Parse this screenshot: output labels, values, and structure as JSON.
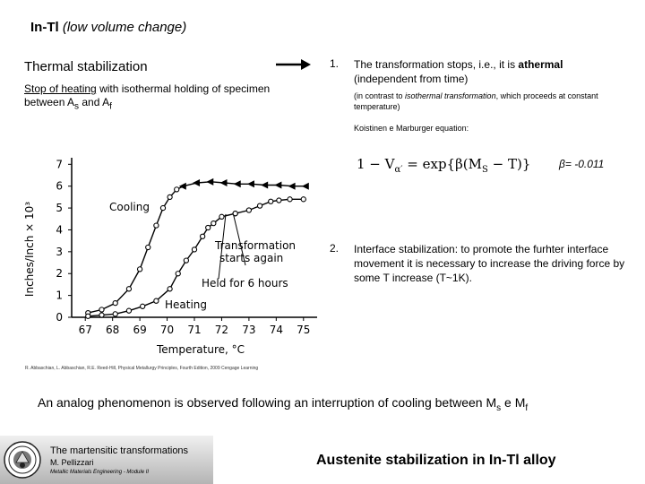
{
  "header": {
    "title_main": "In-Tl",
    "title_sub": "(low volume change)"
  },
  "left": {
    "thermal_stabilization": "Thermal stabilization",
    "stop_prefix": "Stop of heating",
    "stop_mid": " with isothermal holding of specimen between A",
    "sub_s": "s",
    "and": " and A",
    "sub_f": "f"
  },
  "right": {
    "item1_num": "1.",
    "item1_text_a": "The transformation stops, i.e., it is ",
    "item1_bold": "athermal",
    "item1_text_b": " (independent from time)",
    "item1_note_a": "(in contrast to ",
    "item1_note_italic": "isothermal transformation",
    "item1_note_b": ", which proceeds at constant temperature)",
    "koistinen": "Koistinen e Marburger equation:",
    "equation": "1 − V",
    "equation_sub": "α′",
    "equation_rhs": " = exp{β(M",
    "equation_rhs_sub": "S",
    "equation_rhs_end": " − T)}",
    "beta": "β= -0.011",
    "item2_num": "2.",
    "item2_text": "Interface stabilization: to promote the furhter interface movement it is necessary to increase the driving force by some T increase (T~1K)."
  },
  "reference": "R. Abbaschian, L. Abbaschian, R.E. Reed-Hill, Physical Metallurgy Principles, Fourth Edition, 2009 Cengage Learning",
  "analog": {
    "text_a": "An analog phenomenon is observed following an interruption of cooling between  M",
    "sub_s": "s",
    "text_b": " e M",
    "sub_f": "f"
  },
  "footer": {
    "title": "The martensitic transformations",
    "author": "M. Pellizzari",
    "course": "Metallic Materials Engineering - Module II",
    "main": "Austenite stabilization in In-Tl alloy"
  },
  "chart_data": {
    "type": "line",
    "xlabel": "Temperature, °C",
    "ylabel": "Inches/Inch × 10³",
    "xlim": [
      66.5,
      75.5
    ],
    "ylim": [
      0,
      7.3
    ],
    "x_ticks": [
      "67",
      "68",
      "69",
      "70",
      "71",
      "72",
      "73",
      "74",
      "75"
    ],
    "y_ticks": [
      "0",
      "1",
      "2",
      "3",
      "4",
      "5",
      "6",
      "7"
    ],
    "annotations": {
      "cooling": "Cooling",
      "transformation": "Transformation",
      "starts_again": "starts again",
      "held": "Held for 6 hours",
      "heating": "Heating"
    },
    "series": [
      {
        "name": "Cooling",
        "x": [
          75.1,
          74.6,
          74.1,
          73.6,
          73.1,
          72.6,
          72.1,
          71.6,
          71.1,
          70.6,
          70.35,
          70.1,
          69.85,
          69.6,
          69.3,
          69.0,
          68.6,
          68.1,
          67.6,
          67.1
        ],
        "y": [
          6.0,
          6.0,
          6.05,
          6.05,
          6.1,
          6.1,
          6.15,
          6.2,
          6.15,
          6.0,
          5.85,
          5.5,
          5.0,
          4.2,
          3.2,
          2.2,
          1.3,
          0.65,
          0.35,
          0.2
        ]
      },
      {
        "name": "Heating",
        "x": [
          67.1,
          67.6,
          68.1,
          68.6,
          69.1,
          69.6,
          70.1,
          70.4,
          70.7,
          71.0,
          71.3,
          71.5,
          71.7,
          72.0,
          72.5
        ],
        "y": [
          0.05,
          0.1,
          0.15,
          0.3,
          0.5,
          0.75,
          1.3,
          2.0,
          2.6,
          3.1,
          3.7,
          4.1,
          4.3,
          4.6,
          4.75
        ]
      },
      {
        "name": "Transformation starts again",
        "x": [
          72.5,
          73.0,
          73.4,
          73.8,
          74.1,
          74.5,
          75.0
        ],
        "y": [
          4.75,
          4.9,
          5.1,
          5.3,
          5.35,
          5.4,
          5.4
        ]
      }
    ]
  }
}
